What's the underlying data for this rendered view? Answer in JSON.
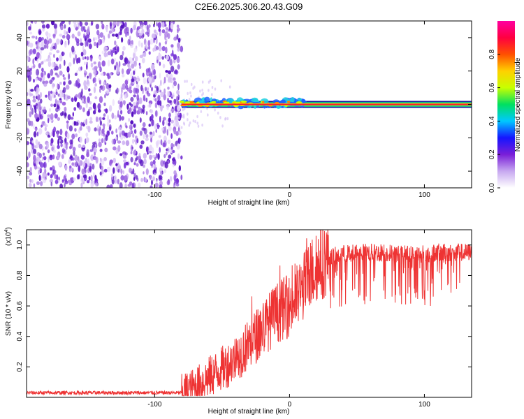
{
  "title": "C2E6.2025.306.20.43.G09",
  "chart_data": [
    {
      "type": "heatmap",
      "name": "spectrogram",
      "xlabel": "Height of straight line (km)",
      "ylabel": "Frequency (Hz)",
      "xlim": [
        -195,
        135
      ],
      "ylim": [
        -50,
        50
      ],
      "xticks": [
        -100,
        0,
        100
      ],
      "yticks": [
        -40,
        -20,
        0,
        20,
        40
      ],
      "noise_region_x": [
        -195,
        -80
      ],
      "signal_start_x": -80,
      "signal_frequency_hz": 0,
      "colorbar": {
        "label": "Normalized spectral amplitude",
        "range": [
          0,
          1
        ],
        "ticks": [
          0.0,
          0.2,
          0.4,
          0.6,
          0.8
        ],
        "colors": [
          "#ffffff",
          "#c7a8f0",
          "#7a1fd8",
          "#1515ff",
          "#00c8ff",
          "#00e060",
          "#c8ff00",
          "#ffd000",
          "#ff5000",
          "#ff0040",
          "#ff00a0"
        ]
      }
    },
    {
      "type": "line",
      "name": "snr",
      "xlabel": "Height of straight line (km)",
      "ylabel": "SNR (10 * v/v)",
      "scale_label": "(x10",
      "scale_exp": "4",
      "scale_close": ")",
      "xlim": [
        -195,
        135
      ],
      "ylim": [
        0,
        1.1
      ],
      "xticks": [
        -100,
        0,
        100
      ],
      "yticks": [
        0.2,
        0.4,
        0.6,
        0.8,
        1.0
      ],
      "color": "#ee3333",
      "x": [
        -195,
        -180,
        -160,
        -140,
        -120,
        -100,
        -90,
        -80,
        -75,
        -70,
        -65,
        -60,
        -55,
        -50,
        -45,
        -40,
        -35,
        -30,
        -25,
        -20,
        -15,
        -10,
        -5,
        0,
        5,
        10,
        15,
        20,
        25,
        30,
        40,
        50,
        60,
        70,
        80,
        90,
        100,
        110,
        120,
        135
      ],
      "values": [
        0.03,
        0.03,
        0.03,
        0.03,
        0.03,
        0.03,
        0.03,
        0.03,
        0.05,
        0.07,
        0.1,
        0.13,
        0.16,
        0.19,
        0.22,
        0.26,
        0.3,
        0.35,
        0.4,
        0.45,
        0.5,
        0.55,
        0.58,
        0.6,
        0.65,
        0.72,
        0.8,
        0.86,
        0.9,
        0.92,
        0.94,
        0.95,
        0.95,
        0.95,
        0.94,
        0.94,
        0.94,
        0.95,
        0.95,
        0.95
      ]
    }
  ]
}
